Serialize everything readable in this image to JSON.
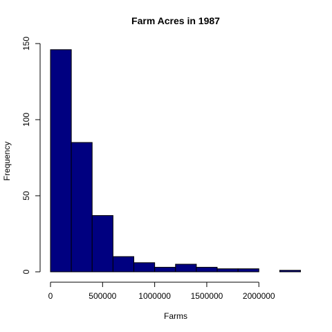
{
  "chart_data": {
    "type": "bar",
    "title": "Farm Acres in 1987",
    "xlabel": "Farms",
    "ylabel": "Frequency",
    "bin_width": 200000,
    "bins": [
      {
        "start": 0,
        "end": 200000,
        "count": 146
      },
      {
        "start": 200000,
        "end": 400000,
        "count": 85
      },
      {
        "start": 400000,
        "end": 600000,
        "count": 37
      },
      {
        "start": 600000,
        "end": 800000,
        "count": 10
      },
      {
        "start": 800000,
        "end": 1000000,
        "count": 6
      },
      {
        "start": 1000000,
        "end": 1200000,
        "count": 3
      },
      {
        "start": 1200000,
        "end": 1400000,
        "count": 5
      },
      {
        "start": 1400000,
        "end": 1600000,
        "count": 3
      },
      {
        "start": 1600000,
        "end": 1800000,
        "count": 2
      },
      {
        "start": 1800000,
        "end": 2000000,
        "count": 2
      },
      {
        "start": 2000000,
        "end": 2200000,
        "count": 0
      },
      {
        "start": 2200000,
        "end": 2400000,
        "count": 1
      }
    ],
    "xlim": [
      0,
      2400000
    ],
    "ylim": [
      0,
      150
    ],
    "x_ticks": [
      0,
      500000,
      1000000,
      1500000,
      2000000
    ],
    "x_tick_labels": [
      "0",
      "500000",
      "1000000",
      "1500000",
      "2000000"
    ],
    "y_ticks": [
      0,
      50,
      100,
      150
    ],
    "y_tick_labels": [
      "0",
      "50",
      "100",
      "150"
    ],
    "bar_color": "#000080",
    "bar_edge_color": "#000000",
    "grid": false
  }
}
